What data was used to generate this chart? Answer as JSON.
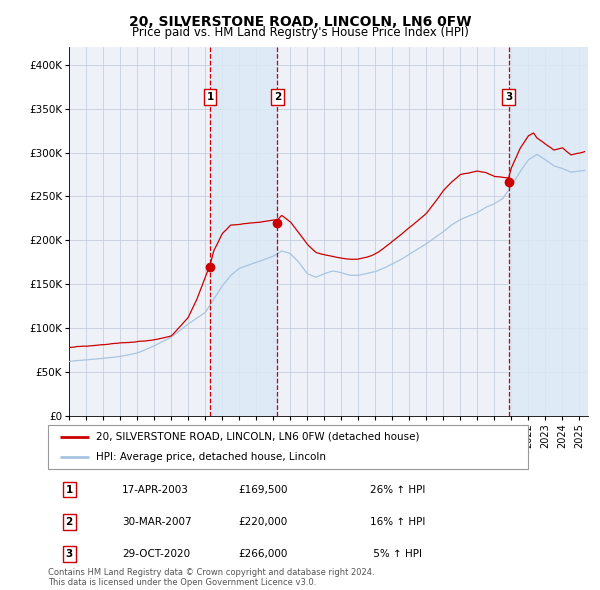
{
  "title": "20, SILVERSTONE ROAD, LINCOLN, LN6 0FW",
  "subtitle": "Price paid vs. HM Land Registry's House Price Index (HPI)",
  "title_fontsize": 10,
  "subtitle_fontsize": 8.5,
  "ylim": [
    0,
    420000
  ],
  "yticks": [
    0,
    50000,
    100000,
    150000,
    200000,
    250000,
    300000,
    350000,
    400000
  ],
  "ytick_labels": [
    "£0",
    "£50K",
    "£100K",
    "£150K",
    "£200K",
    "£250K",
    "£300K",
    "£350K",
    "£400K"
  ],
  "xlim_start": 1995.0,
  "xlim_end": 2025.5,
  "purchases": [
    {
      "num": 1,
      "date_label": "17-APR-2003",
      "price": 169500,
      "pct": "26%",
      "x_year": 2003.29
    },
    {
      "num": 2,
      "date_label": "30-MAR-2007",
      "price": 220000,
      "pct": "16%",
      "x_year": 2007.24
    },
    {
      "num": 3,
      "date_label": "29-OCT-2020",
      "price": 266000,
      "pct": "5%",
      "x_year": 2020.83
    }
  ],
  "hpi_line_color": "#a8c4e0",
  "price_line_color": "#cc0000",
  "dot_color": "#cc0000",
  "vline_color": "#cc0000",
  "shading_color": "#dce9f5",
  "grid_color": "#c0c8d8",
  "background_color": "#eef2f8",
  "legend_label_price": "20, SILVERSTONE ROAD, LINCOLN, LN6 0FW (detached house)",
  "legend_label_hpi": "HPI: Average price, detached house, Lincoln",
  "footnote": "Contains HM Land Registry data © Crown copyright and database right 2024.\nThis data is licensed under the Open Government Licence v3.0.",
  "hpi_anchors": [
    [
      1995.0,
      62000
    ],
    [
      1996.0,
      64000
    ],
    [
      1997.0,
      66000
    ],
    [
      1998.0,
      68000
    ],
    [
      1999.0,
      72000
    ],
    [
      2000.0,
      80000
    ],
    [
      2001.0,
      90000
    ],
    [
      2002.0,
      105000
    ],
    [
      2003.0,
      118000
    ],
    [
      2004.0,
      148000
    ],
    [
      2004.5,
      160000
    ],
    [
      2005.0,
      168000
    ],
    [
      2006.0,
      175000
    ],
    [
      2007.0,
      182000
    ],
    [
      2007.5,
      188000
    ],
    [
      2008.0,
      185000
    ],
    [
      2008.5,
      175000
    ],
    [
      2009.0,
      162000
    ],
    [
      2009.5,
      158000
    ],
    [
      2010.0,
      162000
    ],
    [
      2010.5,
      165000
    ],
    [
      2011.0,
      163000
    ],
    [
      2011.5,
      160000
    ],
    [
      2012.0,
      160000
    ],
    [
      2012.5,
      162000
    ],
    [
      2013.0,
      164000
    ],
    [
      2013.5,
      168000
    ],
    [
      2014.0,
      173000
    ],
    [
      2014.5,
      178000
    ],
    [
      2015.0,
      184000
    ],
    [
      2015.5,
      190000
    ],
    [
      2016.0,
      196000
    ],
    [
      2016.5,
      203000
    ],
    [
      2017.0,
      210000
    ],
    [
      2017.5,
      218000
    ],
    [
      2018.0,
      224000
    ],
    [
      2018.5,
      228000
    ],
    [
      2019.0,
      232000
    ],
    [
      2019.5,
      238000
    ],
    [
      2020.0,
      242000
    ],
    [
      2020.5,
      248000
    ],
    [
      2021.0,
      262000
    ],
    [
      2021.5,
      278000
    ],
    [
      2022.0,
      292000
    ],
    [
      2022.5,
      298000
    ],
    [
      2023.0,
      292000
    ],
    [
      2023.5,
      285000
    ],
    [
      2024.0,
      282000
    ],
    [
      2024.5,
      278000
    ],
    [
      2025.3,
      280000
    ]
  ],
  "price_anchors": [
    [
      1995.0,
      78000
    ],
    [
      1996.0,
      80000
    ],
    [
      1997.0,
      81000
    ],
    [
      1998.0,
      83000
    ],
    [
      1999.0,
      84000
    ],
    [
      2000.0,
      86000
    ],
    [
      2001.0,
      90000
    ],
    [
      2002.0,
      110000
    ],
    [
      2002.5,
      130000
    ],
    [
      2003.0,
      155000
    ],
    [
      2003.29,
      169500
    ],
    [
      2003.5,
      185000
    ],
    [
      2004.0,
      205000
    ],
    [
      2004.5,
      215000
    ],
    [
      2005.0,
      215000
    ],
    [
      2005.5,
      217000
    ],
    [
      2006.0,
      218000
    ],
    [
      2006.5,
      219000
    ],
    [
      2007.0,
      220000
    ],
    [
      2007.24,
      220000
    ],
    [
      2007.5,
      225000
    ],
    [
      2008.0,
      218000
    ],
    [
      2008.5,
      205000
    ],
    [
      2009.0,
      192000
    ],
    [
      2009.5,
      183000
    ],
    [
      2010.0,
      180000
    ],
    [
      2010.5,
      178000
    ],
    [
      2011.0,
      176000
    ],
    [
      2011.5,
      174000
    ],
    [
      2012.0,
      174000
    ],
    [
      2012.5,
      176000
    ],
    [
      2013.0,
      180000
    ],
    [
      2013.5,
      186000
    ],
    [
      2014.0,
      194000
    ],
    [
      2014.5,
      202000
    ],
    [
      2015.0,
      210000
    ],
    [
      2015.5,
      218000
    ],
    [
      2016.0,
      226000
    ],
    [
      2016.5,
      238000
    ],
    [
      2017.0,
      252000
    ],
    [
      2017.5,
      262000
    ],
    [
      2018.0,
      270000
    ],
    [
      2018.5,
      272000
    ],
    [
      2019.0,
      274000
    ],
    [
      2019.5,
      272000
    ],
    [
      2020.0,
      268000
    ],
    [
      2020.83,
      266000
    ],
    [
      2021.0,
      278000
    ],
    [
      2021.5,
      300000
    ],
    [
      2022.0,
      315000
    ],
    [
      2022.3,
      318000
    ],
    [
      2022.5,
      312000
    ],
    [
      2023.0,
      305000
    ],
    [
      2023.5,
      298000
    ],
    [
      2024.0,
      300000
    ],
    [
      2024.5,
      292000
    ],
    [
      2025.3,
      295000
    ]
  ]
}
